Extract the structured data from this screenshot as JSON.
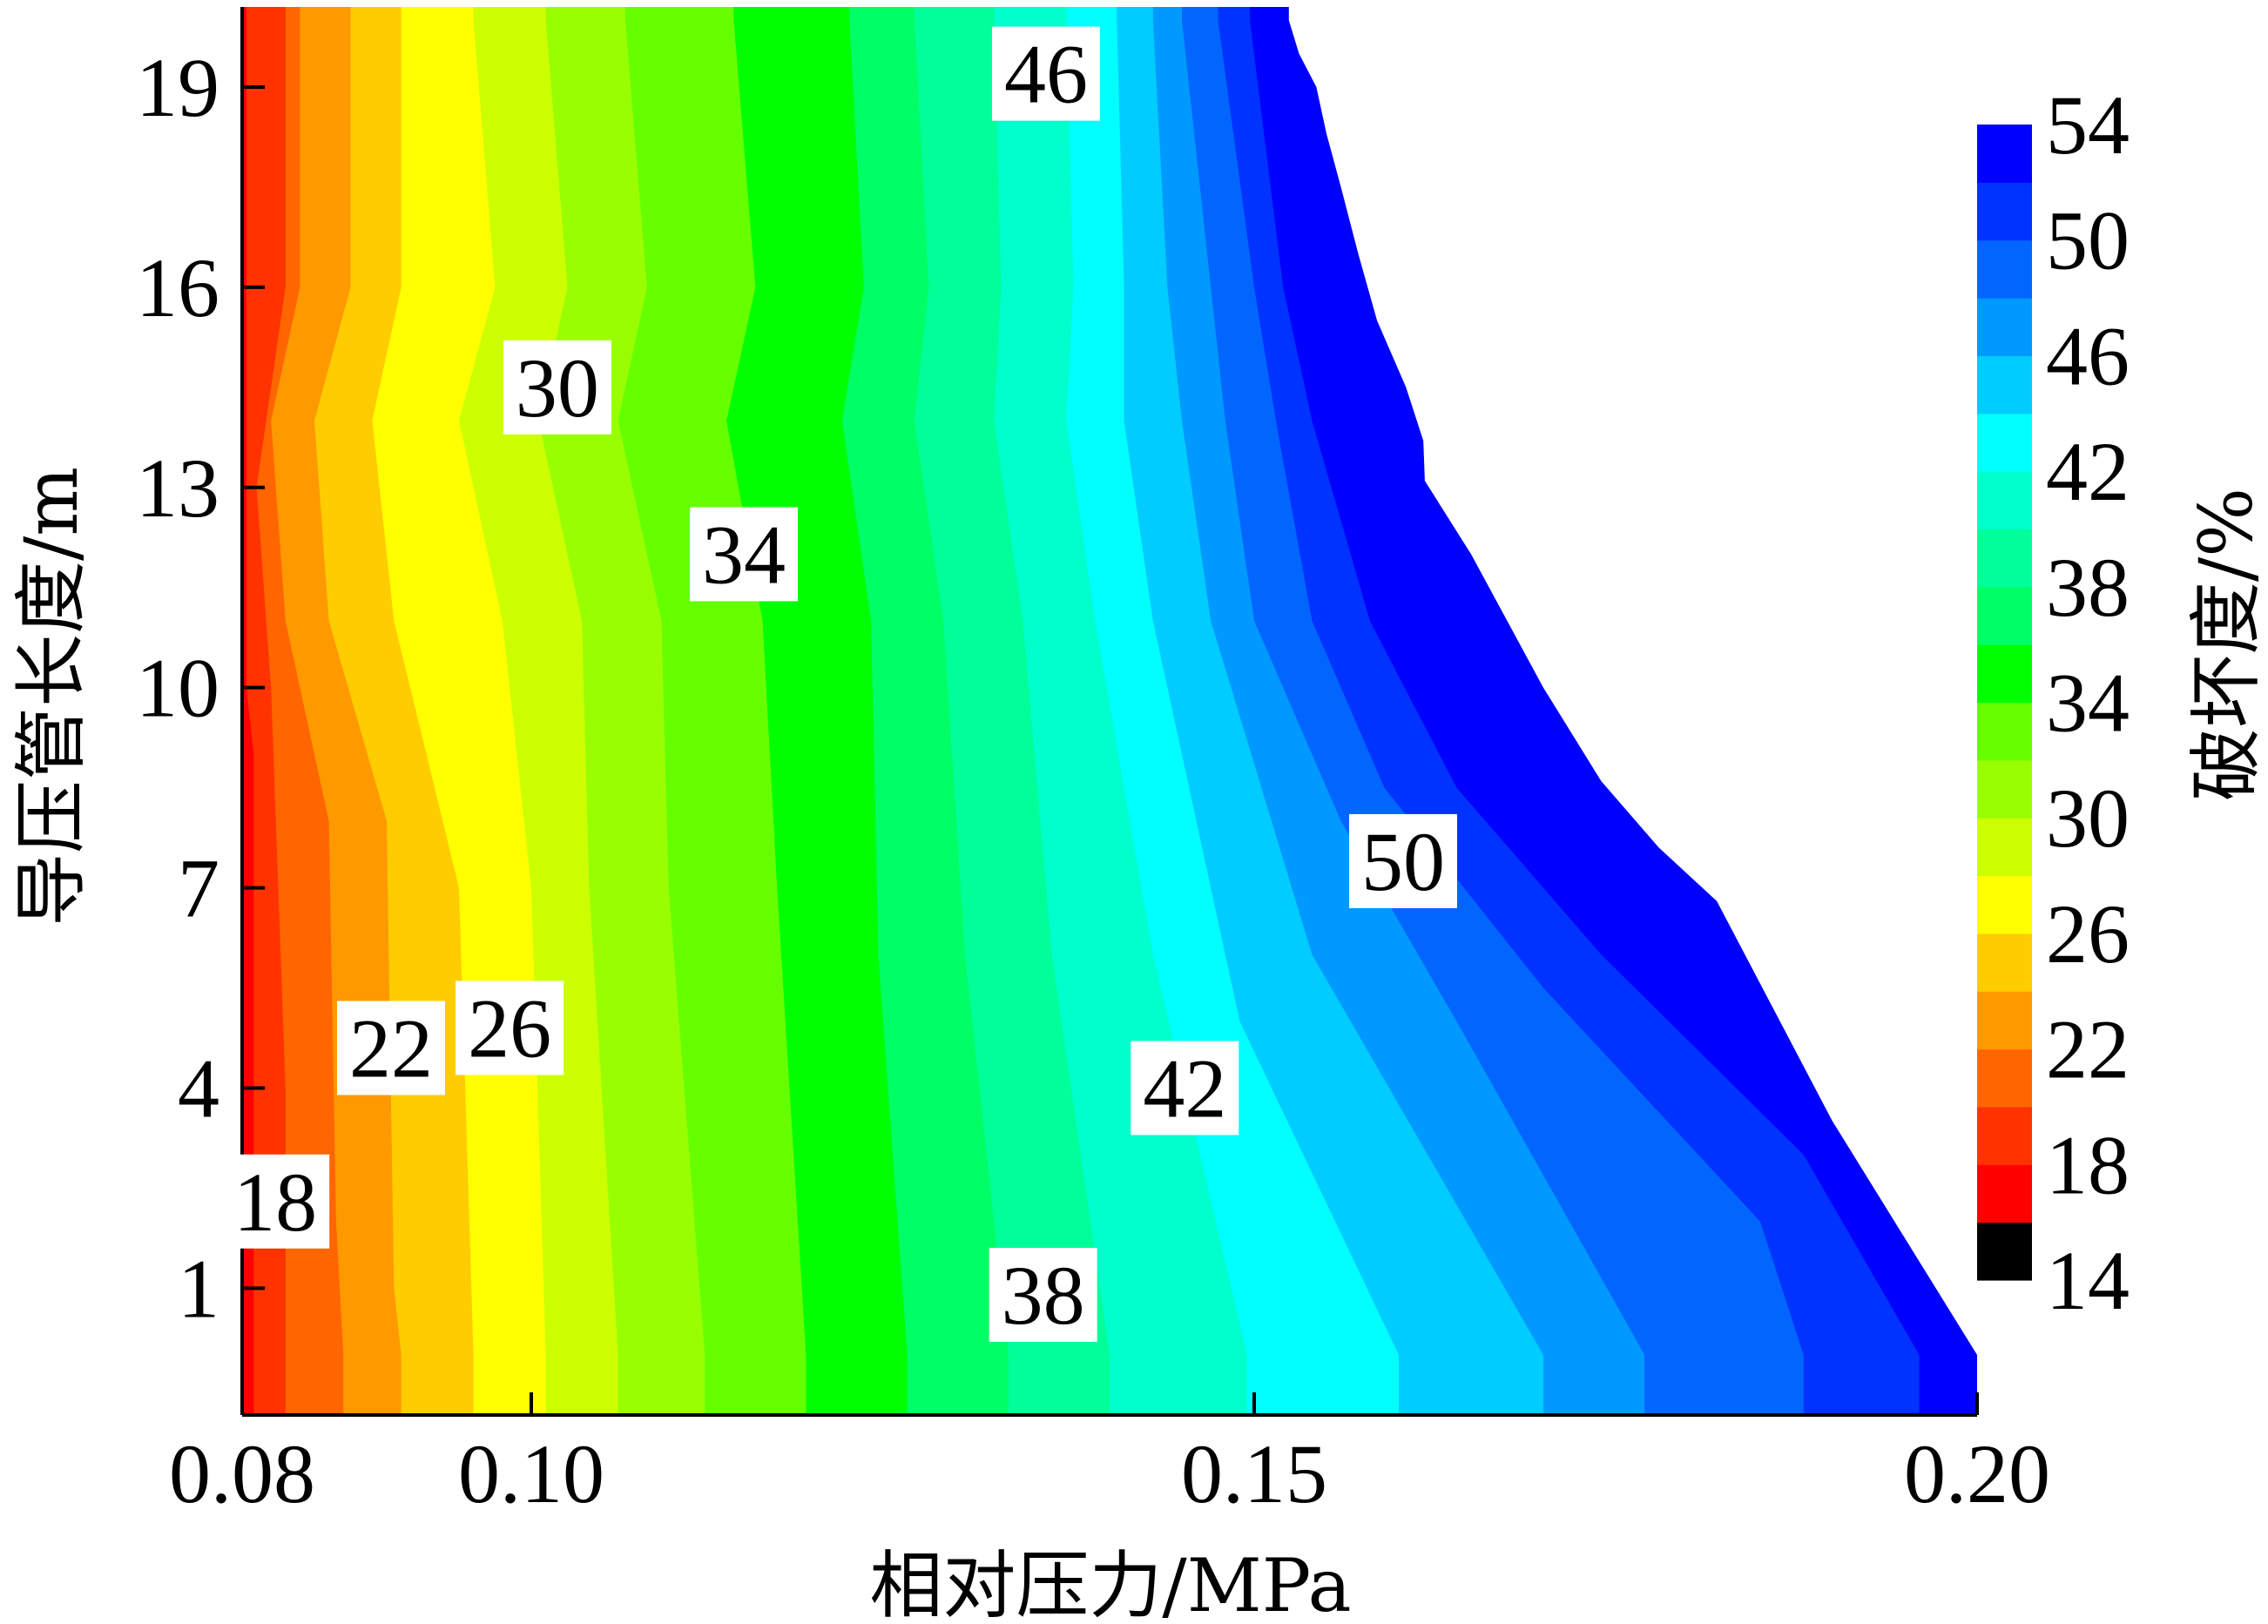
{
  "chart_data": {
    "type": "heatmap",
    "subtype": "filled-contour",
    "title": "",
    "xlabel": "相对压力/MPa",
    "ylabel": "导压管长度/m",
    "xlim": [
      0.08,
      0.2
    ],
    "ylim": [
      -0.9,
      20.2
    ],
    "x_ticks": [
      "0.08",
      "0.10",
      "0.15",
      "0.20"
    ],
    "y_ticks": [
      "1",
      "4",
      "7",
      "10",
      "13",
      "16",
      "19"
    ],
    "grid": false,
    "colorbar": {
      "label": "破坏度/%",
      "levels": [
        14,
        16,
        18,
        20,
        22,
        24,
        26,
        28,
        30,
        32,
        34,
        36,
        38,
        40,
        42,
        44,
        46,
        48,
        50,
        52,
        54
      ],
      "tick_labels": [
        "14",
        "18",
        "22",
        "26",
        "30",
        "34",
        "38",
        "42",
        "46",
        "50",
        "54"
      ],
      "colors": [
        "#000000",
        "#ff0000",
        "#ff3300",
        "#ff6600",
        "#ff9900",
        "#ffcc00",
        "#ffff00",
        "#ccff00",
        "#99ff00",
        "#66ff00",
        "#00ff00",
        "#00ff66",
        "#00ff99",
        "#00ffcc",
        "#00ffff",
        "#00ccff",
        "#0099ff",
        "#0066ff",
        "#0033ff",
        "#0000ff"
      ]
    },
    "boundary": [
      {
        "x": 0.1524,
        "y": 20.0
      },
      {
        "x": 0.1531,
        "y": 19.5
      },
      {
        "x": 0.1543,
        "y": 19.0
      },
      {
        "x": 0.155,
        "y": 18.3
      },
      {
        "x": 0.156,
        "y": 17.5
      },
      {
        "x": 0.1572,
        "y": 16.5
      },
      {
        "x": 0.1585,
        "y": 15.5
      },
      {
        "x": 0.1605,
        "y": 14.5
      },
      {
        "x": 0.1617,
        "y": 13.7
      },
      {
        "x": 0.1618,
        "y": 13.1
      },
      {
        "x": 0.165,
        "y": 12.0
      },
      {
        "x": 0.17,
        "y": 10.0
      },
      {
        "x": 0.174,
        "y": 8.6
      },
      {
        "x": 0.178,
        "y": 7.6
      },
      {
        "x": 0.182,
        "y": 6.8
      },
      {
        "x": 0.19,
        "y": 3.5
      },
      {
        "x": 0.2,
        "y": 0.0
      }
    ],
    "contour_lines": [
      {
        "level": 16,
        "points": [
          {
            "x": 0.0803,
            "y": 20.0
          },
          {
            "x": 0.0803,
            "y": 10.0
          },
          {
            "x": 0.0808,
            "y": 9.0
          },
          {
            "x": 0.0808,
            "y": 0.0
          }
        ]
      },
      {
        "level": 18,
        "points": [
          {
            "x": 0.083,
            "y": 20.0
          },
          {
            "x": 0.083,
            "y": 16.0
          },
          {
            "x": 0.081,
            "y": 13.0
          },
          {
            "x": 0.082,
            "y": 10.0
          },
          {
            "x": 0.083,
            "y": 4.0
          },
          {
            "x": 0.083,
            "y": 0.0
          }
        ]
      },
      {
        "level": 20,
        "points": [
          {
            "x": 0.084,
            "y": 20.0
          },
          {
            "x": 0.084,
            "y": 16.0
          },
          {
            "x": 0.082,
            "y": 14.0
          },
          {
            "x": 0.083,
            "y": 11.0
          },
          {
            "x": 0.086,
            "y": 8.0
          },
          {
            "x": 0.0865,
            "y": 2.0
          },
          {
            "x": 0.087,
            "y": 0.0
          }
        ]
      },
      {
        "level": 22,
        "points": [
          {
            "x": 0.0875,
            "y": 20.0
          },
          {
            "x": 0.0875,
            "y": 16.0
          },
          {
            "x": 0.085,
            "y": 14.0
          },
          {
            "x": 0.086,
            "y": 11.0
          },
          {
            "x": 0.09,
            "y": 8.0
          },
          {
            "x": 0.0905,
            "y": 1.0
          },
          {
            "x": 0.091,
            "y": 0.0
          }
        ]
      },
      {
        "level": 24,
        "points": [
          {
            "x": 0.091,
            "y": 20.0
          },
          {
            "x": 0.091,
            "y": 16.0
          },
          {
            "x": 0.089,
            "y": 14.0
          },
          {
            "x": 0.0905,
            "y": 11.0
          },
          {
            "x": 0.095,
            "y": 7.0
          },
          {
            "x": 0.096,
            "y": 0.0
          }
        ]
      },
      {
        "level": 26,
        "points": [
          {
            "x": 0.096,
            "y": 20.0
          },
          {
            "x": 0.0975,
            "y": 16.0
          },
          {
            "x": 0.095,
            "y": 14.0
          },
          {
            "x": 0.098,
            "y": 11.0
          },
          {
            "x": 0.1,
            "y": 7.0
          },
          {
            "x": 0.101,
            "y": 0.0
          }
        ]
      },
      {
        "level": 28,
        "points": [
          {
            "x": 0.101,
            "y": 20.0
          },
          {
            "x": 0.1025,
            "y": 16.0
          },
          {
            "x": 0.1005,
            "y": 14.0
          },
          {
            "x": 0.1035,
            "y": 11.0
          },
          {
            "x": 0.104,
            "y": 7.0
          },
          {
            "x": 0.106,
            "y": 0.0
          }
        ]
      },
      {
        "level": 30,
        "points": [
          {
            "x": 0.1065,
            "y": 20.0
          },
          {
            "x": 0.108,
            "y": 16.0
          },
          {
            "x": 0.106,
            "y": 14.0
          },
          {
            "x": 0.109,
            "y": 11.0
          },
          {
            "x": 0.1095,
            "y": 7.0
          },
          {
            "x": 0.112,
            "y": 0.0
          }
        ]
      },
      {
        "level": 32,
        "points": [
          {
            "x": 0.114,
            "y": 20.0
          },
          {
            "x": 0.1155,
            "y": 16.0
          },
          {
            "x": 0.1135,
            "y": 14.0
          },
          {
            "x": 0.116,
            "y": 11.0
          },
          {
            "x": 0.117,
            "y": 7.0
          },
          {
            "x": 0.119,
            "y": 0.0
          }
        ]
      },
      {
        "level": 34,
        "points": [
          {
            "x": 0.122,
            "y": 20.0
          },
          {
            "x": 0.123,
            "y": 16.0
          },
          {
            "x": 0.1215,
            "y": 14.0
          },
          {
            "x": 0.1235,
            "y": 11.0
          },
          {
            "x": 0.124,
            "y": 6.0
          },
          {
            "x": 0.126,
            "y": 0.0
          }
        ]
      },
      {
        "level": 36,
        "points": [
          {
            "x": 0.1265,
            "y": 20.0
          },
          {
            "x": 0.1275,
            "y": 16.0
          },
          {
            "x": 0.1265,
            "y": 14.0
          },
          {
            "x": 0.1285,
            "y": 11.0
          },
          {
            "x": 0.13,
            "y": 6.0
          },
          {
            "x": 0.133,
            "y": 0.0
          }
        ]
      },
      {
        "level": 38,
        "points": [
          {
            "x": 0.132,
            "y": 20.0
          },
          {
            "x": 0.1325,
            "y": 16.0
          },
          {
            "x": 0.132,
            "y": 14.0
          },
          {
            "x": 0.134,
            "y": 11.0
          },
          {
            "x": 0.136,
            "y": 6.0
          },
          {
            "x": 0.14,
            "y": 0.0
          }
        ]
      },
      {
        "level": 40,
        "points": [
          {
            "x": 0.137,
            "y": 20.0
          },
          {
            "x": 0.1375,
            "y": 16.0
          },
          {
            "x": 0.137,
            "y": 14.0
          },
          {
            "x": 0.139,
            "y": 11.0
          },
          {
            "x": 0.143,
            "y": 6.0
          },
          {
            "x": 0.1495,
            "y": 0.0
          }
        ]
      },
      {
        "level": 42,
        "points": [
          {
            "x": 0.1405,
            "y": 20.0
          },
          {
            "x": 0.141,
            "y": 16.0
          },
          {
            "x": 0.141,
            "y": 14.0
          },
          {
            "x": 0.143,
            "y": 11.0
          },
          {
            "x": 0.149,
            "y": 5.0
          },
          {
            "x": 0.16,
            "y": 0.0
          }
        ]
      },
      {
        "level": 44,
        "points": [
          {
            "x": 0.143,
            "y": 20.0
          },
          {
            "x": 0.144,
            "y": 16.0
          },
          {
            "x": 0.145,
            "y": 14.0
          },
          {
            "x": 0.147,
            "y": 11.0
          },
          {
            "x": 0.154,
            "y": 6.0
          },
          {
            "x": 0.17,
            "y": 0.0
          }
        ]
      },
      {
        "level": 46,
        "points": [
          {
            "x": 0.145,
            "y": 20.0
          },
          {
            "x": 0.147,
            "y": 16.0
          },
          {
            "x": 0.148,
            "y": 14.0
          },
          {
            "x": 0.15,
            "y": 11.0
          },
          {
            "x": 0.156,
            "y": 8.0
          },
          {
            "x": 0.164,
            "y": 5.0
          },
          {
            "x": 0.177,
            "y": 0.0
          }
        ]
      },
      {
        "level": 48,
        "points": [
          {
            "x": 0.1475,
            "y": 20.0
          },
          {
            "x": 0.15,
            "y": 16.0
          },
          {
            "x": 0.1515,
            "y": 14.0
          },
          {
            "x": 0.154,
            "y": 11.0
          },
          {
            "x": 0.159,
            "y": 8.5
          },
          {
            "x": 0.17,
            "y": 5.5
          },
          {
            "x": 0.185,
            "y": 2.0
          },
          {
            "x": 0.188,
            "y": 0.0
          }
        ]
      },
      {
        "level": 50,
        "points": [
          {
            "x": 0.1497,
            "y": 20.0
          },
          {
            "x": 0.152,
            "y": 16.0
          },
          {
            "x": 0.154,
            "y": 14.0
          },
          {
            "x": 0.158,
            "y": 11.0
          },
          {
            "x": 0.164,
            "y": 8.5
          },
          {
            "x": 0.174,
            "y": 6.0
          },
          {
            "x": 0.188,
            "y": 3.0
          },
          {
            "x": 0.196,
            "y": 0.0
          }
        ]
      },
      {
        "level": 52,
        "points": [
          {
            "x": 0.1508,
            "y": 20.0
          },
          {
            "x": 0.154,
            "y": 16.0
          },
          {
            "x": 0.1565,
            "y": 14.0
          },
          {
            "x": 0.162,
            "y": 11.0
          },
          {
            "x": 0.17,
            "y": 8.0
          },
          {
            "x": 0.18,
            "y": 6.0
          },
          {
            "x": 0.19,
            "y": 3.5
          },
          {
            "x": 0.2,
            "y": 0.0
          }
        ]
      }
    ],
    "contour_labels": [
      {
        "text": "18",
        "x": 0.0823,
        "y": 2.3
      },
      {
        "text": "22",
        "x": 0.0903,
        "y": 4.6
      },
      {
        "text": "26",
        "x": 0.0985,
        "y": 4.9
      },
      {
        "text": "30",
        "x": 0.1018,
        "y": 14.5
      },
      {
        "text": "34",
        "x": 0.1147,
        "y": 12.0
      },
      {
        "text": "38",
        "x": 0.1354,
        "y": 0.9
      },
      {
        "text": "42",
        "x": 0.1452,
        "y": 4.0
      },
      {
        "text": "46",
        "x": 0.1356,
        "y": 19.2
      },
      {
        "text": "50",
        "x": 0.1603,
        "y": 7.4
      }
    ]
  }
}
